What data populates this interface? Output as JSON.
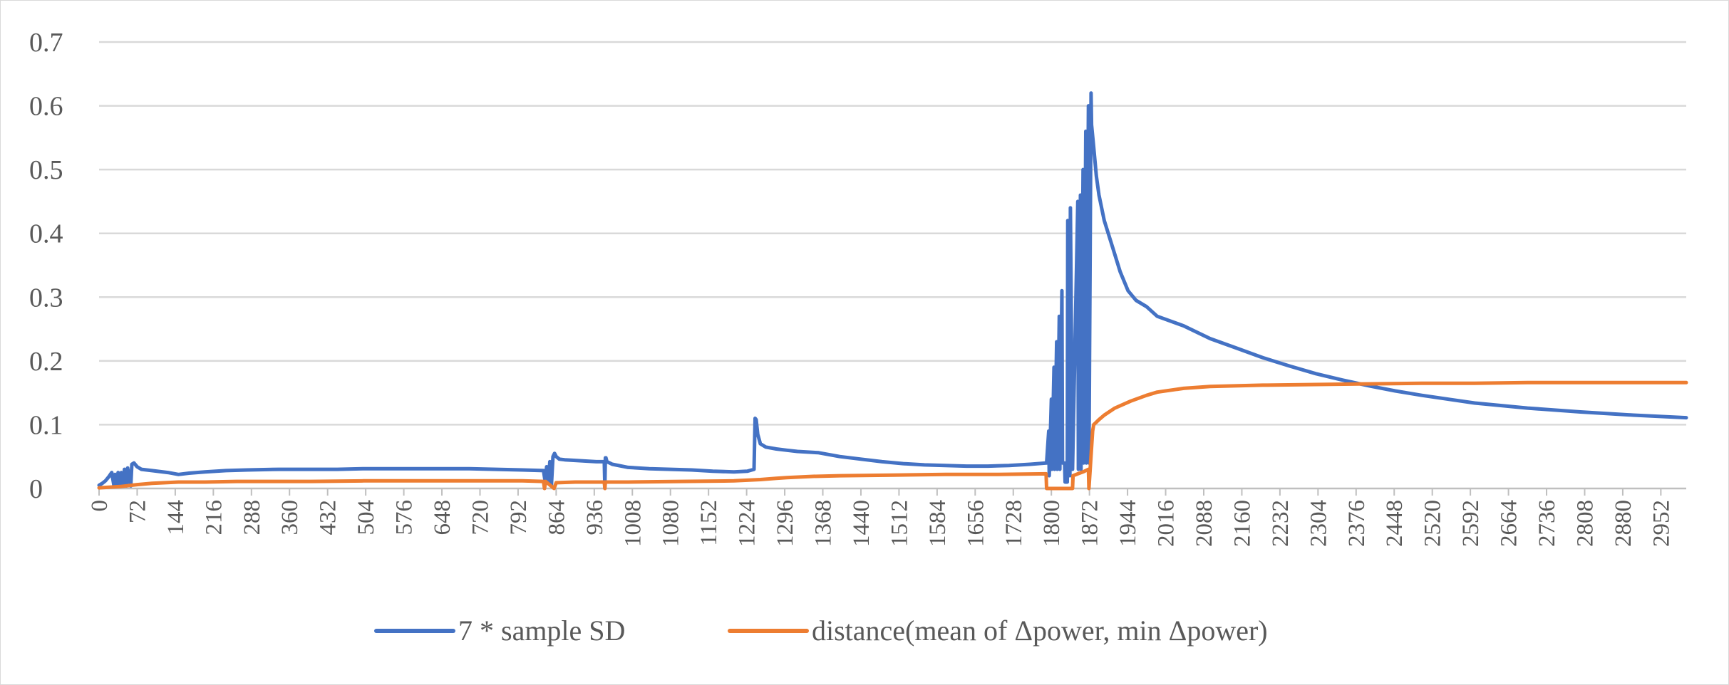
{
  "chart_data": {
    "type": "line",
    "title": "",
    "xlabel": "",
    "ylabel": "",
    "grid": true,
    "legend_position": "bottom",
    "ylim": [
      0,
      0.7
    ],
    "yticks": [
      "0",
      "0.1",
      "0.2",
      "0.3",
      "0.4",
      "0.5",
      "0.6",
      "0.7"
    ],
    "xlim": [
      0,
      3000
    ],
    "xticks": [
      "0",
      "72",
      "144",
      "216",
      "288",
      "360",
      "432",
      "504",
      "576",
      "648",
      "720",
      "792",
      "864",
      "936",
      "1008",
      "1080",
      "1152",
      "1224",
      "1296",
      "1368",
      "1440",
      "1512",
      "1584",
      "1656",
      "1728",
      "1800",
      "1872",
      "1944",
      "2016",
      "2088",
      "2160",
      "2232",
      "2304",
      "2376",
      "2448",
      "2520",
      "2592",
      "2664",
      "2736",
      "2808",
      "2880",
      "2952"
    ],
    "series": [
      {
        "name": "7 * sample SD",
        "color": "#4472c4",
        "x": [
          0,
          6,
          12,
          18,
          24,
          28,
          30,
          34,
          36,
          40,
          42,
          46,
          48,
          52,
          54,
          60,
          62,
          66,
          72,
          80,
          100,
          130,
          150,
          170,
          200,
          240,
          280,
          340,
          400,
          450,
          500,
          550,
          600,
          650,
          700,
          750,
          800,
          840,
          843,
          846,
          849,
          852,
          855,
          858,
          861,
          864,
          870,
          880,
          900,
          920,
          940,
          955,
          956,
          957,
          958,
          960,
          970,
          1000,
          1040,
          1080,
          1120,
          1160,
          1200,
          1225,
          1238,
          1240,
          1242,
          1245,
          1250,
          1260,
          1280,
          1300,
          1320,
          1360,
          1400,
          1440,
          1480,
          1520,
          1560,
          1600,
          1640,
          1680,
          1720,
          1760,
          1790,
          1791,
          1795,
          1796,
          1800,
          1801,
          1805,
          1806,
          1810,
          1811,
          1815,
          1816,
          1820,
          1821,
          1825,
          1826,
          1830,
          1831,
          1835,
          1836,
          1840,
          1850,
          1851,
          1855,
          1856,
          1860,
          1861,
          1865,
          1866,
          1870,
          1871,
          1875,
          1876,
          1880,
          1885,
          1890,
          1900,
          1915,
          1930,
          1945,
          1960,
          1980,
          2000,
          2050,
          2100,
          2150,
          2200,
          2250,
          2300,
          2350,
          2400,
          2450,
          2500,
          2600,
          2700,
          2800,
          2900,
          3000
        ],
        "values": [
          0.005,
          0.008,
          0.012,
          0.018,
          0.025,
          0.005,
          0.022,
          0.003,
          0.025,
          0.004,
          0.025,
          0.004,
          0.03,
          0.004,
          0.032,
          0.004,
          0.038,
          0.04,
          0.034,
          0.03,
          0.028,
          0.025,
          0.022,
          0.024,
          0.026,
          0.028,
          0.029,
          0.03,
          0.03,
          0.03,
          0.031,
          0.031,
          0.031,
          0.031,
          0.031,
          0.03,
          0.029,
          0.028,
          0.012,
          0.034,
          0.008,
          0.042,
          0.005,
          0.05,
          0.055,
          0.05,
          0.046,
          0.045,
          0.044,
          0.043,
          0.042,
          0.042,
          0.002,
          0.048,
          0.048,
          0.042,
          0.038,
          0.033,
          0.031,
          0.03,
          0.029,
          0.027,
          0.026,
          0.027,
          0.03,
          0.11,
          0.108,
          0.085,
          0.07,
          0.065,
          0.062,
          0.06,
          0.058,
          0.056,
          0.05,
          0.046,
          0.042,
          0.039,
          0.037,
          0.036,
          0.035,
          0.035,
          0.036,
          0.038,
          0.04,
          0.04,
          0.09,
          0.02,
          0.14,
          0.03,
          0.19,
          0.03,
          0.23,
          0.03,
          0.27,
          0.03,
          0.31,
          0.04,
          0.04,
          0.01,
          0.01,
          0.42,
          0.02,
          0.44,
          0.03,
          0.45,
          0.03,
          0.46,
          0.03,
          0.5,
          0.04,
          0.56,
          0.04,
          0.6,
          0.04,
          0.62,
          0.57,
          0.535,
          0.49,
          0.46,
          0.42,
          0.38,
          0.34,
          0.31,
          0.295,
          0.285,
          0.27,
          0.255,
          0.235,
          0.22,
          0.205,
          0.192,
          0.18,
          0.17,
          0.161,
          0.153,
          0.146,
          0.134,
          0.126,
          0.12,
          0.115,
          0.111
        ]
      },
      {
        "name": "distance(mean of Δpower,  min Δpower)",
        "color": "#ed7d31",
        "x": [
          0,
          40,
          72,
          100,
          150,
          200,
          260,
          320,
          400,
          500,
          600,
          700,
          800,
          840,
          842,
          844,
          860,
          864,
          866,
          900,
          955,
          956,
          957,
          960,
          1000,
          1100,
          1200,
          1250,
          1280,
          1300,
          1350,
          1400,
          1500,
          1600,
          1700,
          1790,
          1791,
          1840,
          1841,
          1850,
          1860,
          1870,
          1871,
          1878,
          1880,
          1890,
          1900,
          1920,
          1950,
          1980,
          2000,
          2050,
          2100,
          2200,
          2300,
          2400,
          2500,
          2600,
          2700,
          2800,
          2900,
          3000
        ],
        "values": [
          0.001,
          0.003,
          0.006,
          0.008,
          0.01,
          0.01,
          0.011,
          0.011,
          0.011,
          0.012,
          0.012,
          0.012,
          0.012,
          0.011,
          0.0,
          0.011,
          0.0,
          0.009,
          0.009,
          0.01,
          0.01,
          0.0,
          0.01,
          0.01,
          0.01,
          0.011,
          0.012,
          0.014,
          0.016,
          0.017,
          0.019,
          0.02,
          0.021,
          0.022,
          0.022,
          0.023,
          0.0,
          0.0,
          0.02,
          0.023,
          0.026,
          0.03,
          0.0,
          0.09,
          0.1,
          0.108,
          0.115,
          0.126,
          0.137,
          0.146,
          0.151,
          0.157,
          0.16,
          0.162,
          0.163,
          0.164,
          0.165,
          0.165,
          0.166,
          0.166,
          0.166,
          0.166
        ]
      }
    ]
  }
}
